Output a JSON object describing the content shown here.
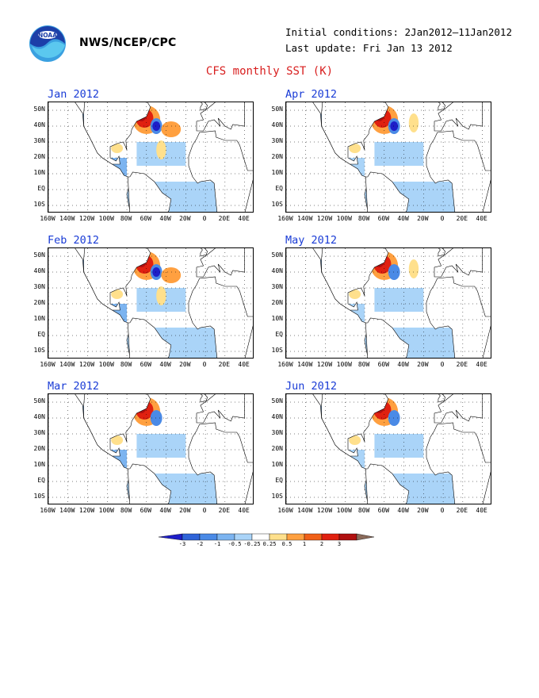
{
  "header": {
    "org": "NWS/NCEP/CPC",
    "initial_conditions": "Initial conditions: 2Jan2012–11Jan2012",
    "last_update": "Last update: Fri Jan 13 2012",
    "title": "CFS monthly SST (K)",
    "logo_icon": "noaa-logo-icon"
  },
  "panels": [
    {
      "label": "Jan 2012"
    },
    {
      "label": "Apr 2012"
    },
    {
      "label": "Feb 2012"
    },
    {
      "label": "May 2012"
    },
    {
      "label": "Mar 2012"
    },
    {
      "label": "Jun 2012"
    }
  ],
  "axes": {
    "lat_labels": [
      "50N",
      "40N",
      "30N",
      "20N",
      "10N",
      "EQ",
      "10S"
    ],
    "lon_labels": [
      "160W",
      "140W",
      "120W",
      "100W",
      "80W",
      "60W",
      "40W",
      "20W",
      "0",
      "20E",
      "40E"
    ]
  },
  "colorbar": {
    "tick_labels": [
      "-3",
      "-2",
      "-1",
      "-0.5",
      "-0.25",
      "0.25",
      "0.5",
      "1",
      "2",
      "3"
    ],
    "colors": [
      "#1e1ec8",
      "#2f64d8",
      "#4a8ae6",
      "#7cb4f0",
      "#aad4f8",
      "#ffffff",
      "#ffe08c",
      "#ffa040",
      "#f06018",
      "#e02010",
      "#b01010",
      "#8a6a5a"
    ]
  }
}
